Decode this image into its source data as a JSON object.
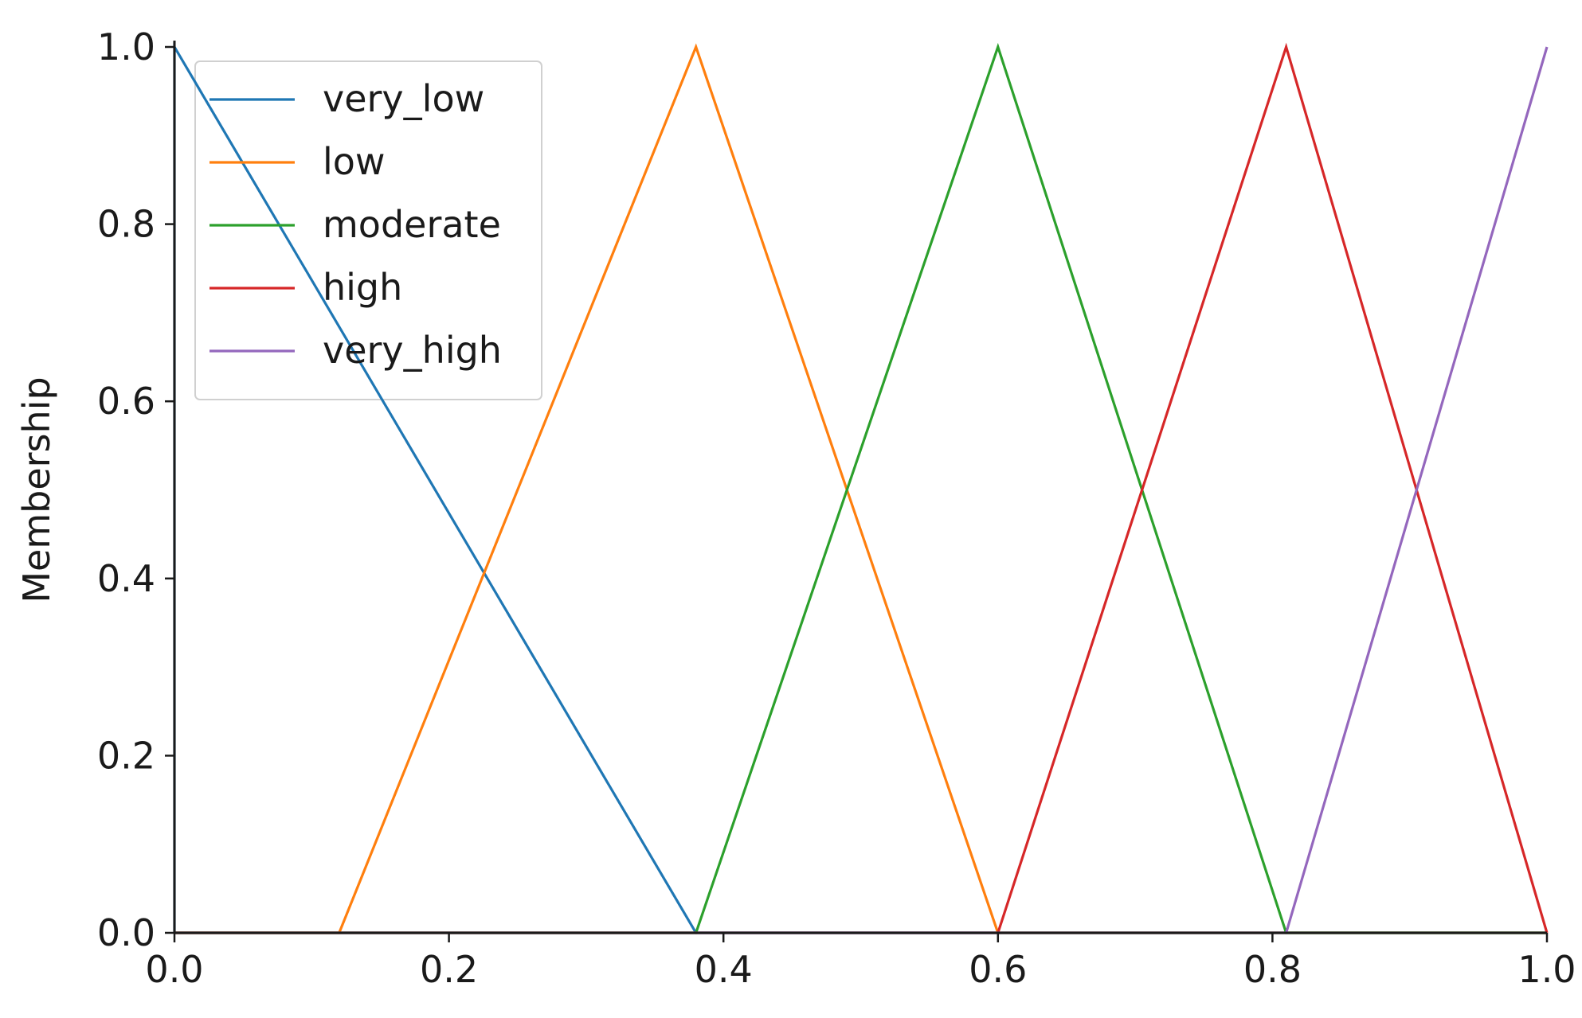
{
  "chart_data": {
    "type": "line",
    "title": "",
    "xlabel": "",
    "ylabel": "Membership",
    "xlim": [
      0.0,
      1.0
    ],
    "ylim": [
      0.0,
      1.0
    ],
    "grid": false,
    "legend_placement": "top-left",
    "x_ticks": [
      "0.0",
      "0.2",
      "0.4",
      "0.6",
      "0.8",
      "1.0"
    ],
    "y_ticks": [
      "0.0",
      "0.2",
      "0.4",
      "0.6",
      "0.8",
      "1.0"
    ],
    "series": [
      {
        "name": "very_low",
        "color": "#1f77b4",
        "x": [
          0.0,
          0.0,
          0.38,
          1.0
        ],
        "y": [
          0.0,
          1.0,
          0.0,
          0.0
        ]
      },
      {
        "name": "low",
        "color": "#ff7f0e",
        "x": [
          0.0,
          0.12,
          0.38,
          0.6,
          1.0
        ],
        "y": [
          0.0,
          0.0,
          1.0,
          0.0,
          0.0
        ]
      },
      {
        "name": "moderate",
        "color": "#2ca02c",
        "x": [
          0.0,
          0.38,
          0.6,
          0.81,
          1.0
        ],
        "y": [
          0.0,
          0.0,
          1.0,
          0.0,
          0.0
        ]
      },
      {
        "name": "high",
        "color": "#d62728",
        "x": [
          0.0,
          0.6,
          0.81,
          1.0
        ],
        "y": [
          0.0,
          0.0,
          1.0,
          0.0
        ]
      },
      {
        "name": "very_high",
        "color": "#9467bd",
        "x": [
          0.0,
          0.81,
          1.0
        ],
        "y": [
          0.0,
          0.0,
          1.0
        ]
      }
    ]
  }
}
